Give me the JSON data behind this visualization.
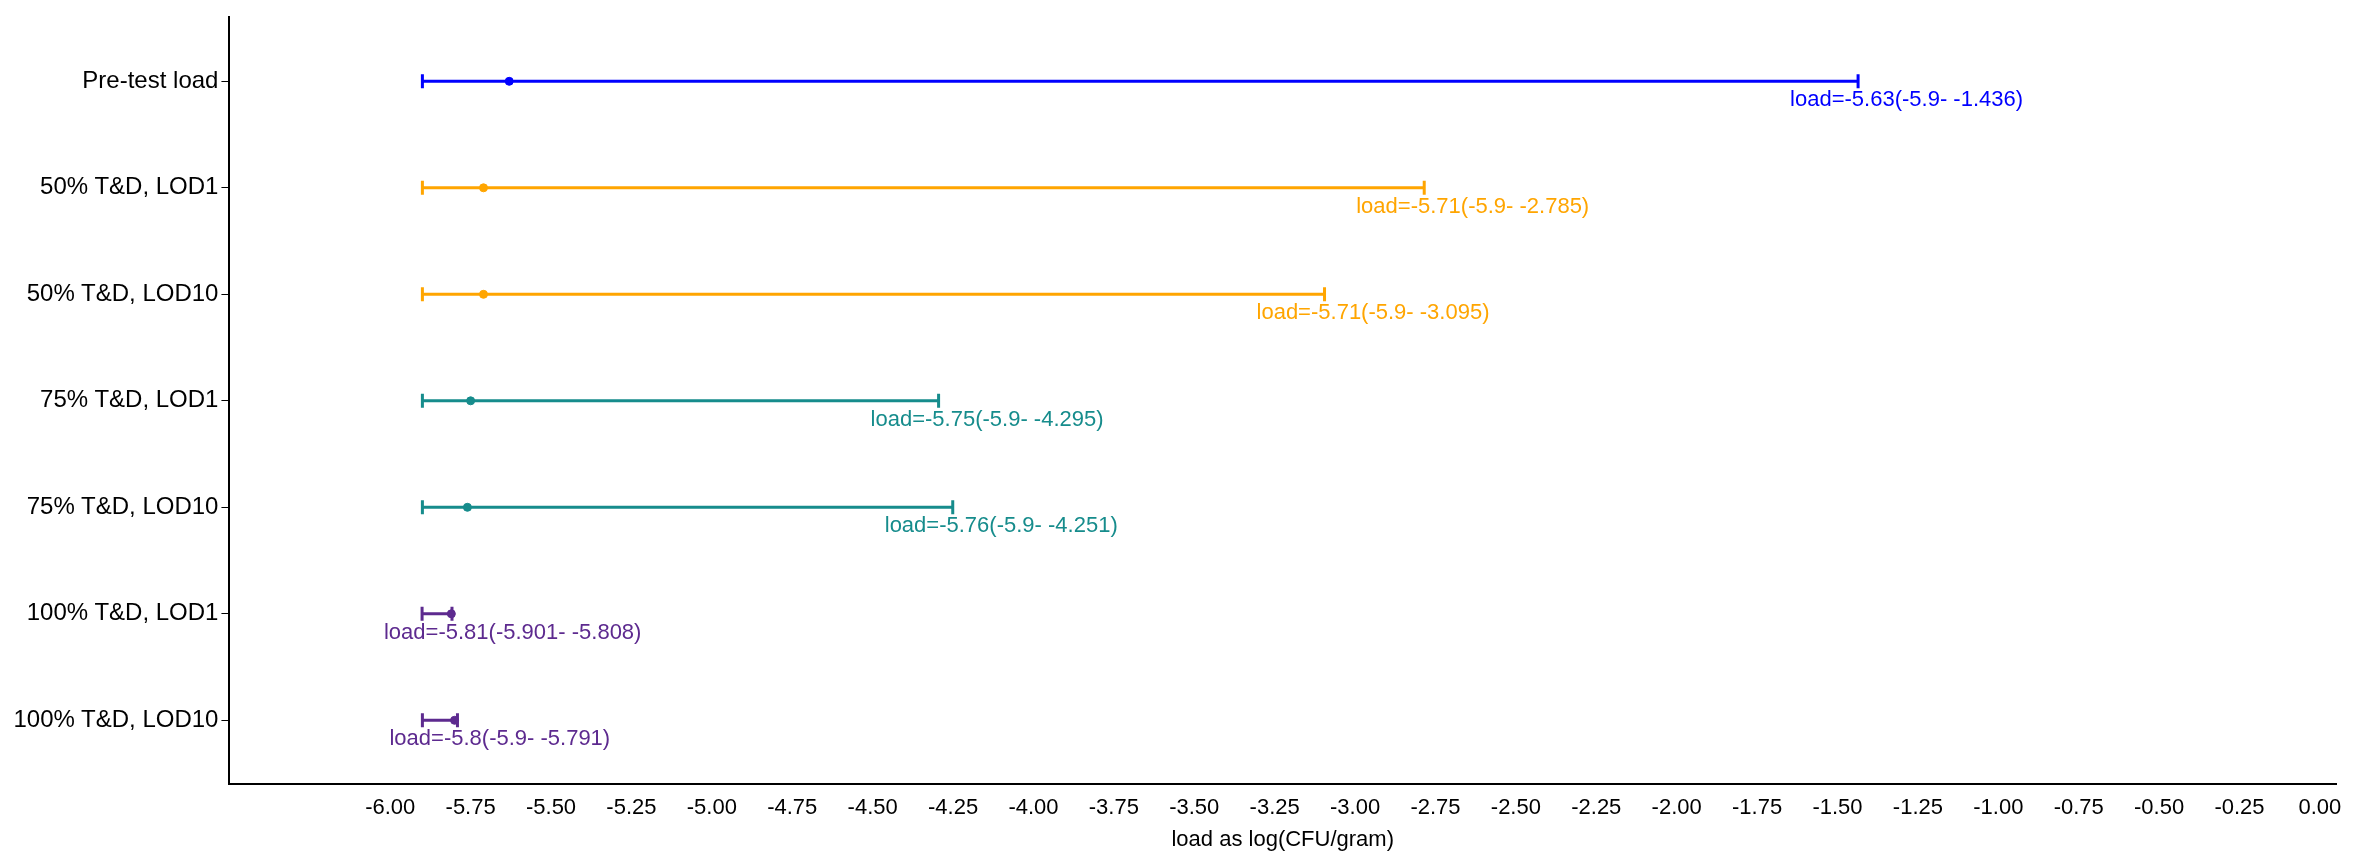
{
  "chart_data": {
    "type": "scatter",
    "orientation": "horizontal",
    "xlabel": "load as log(CFU/gram)",
    "categories": [
      "Pre-test load",
      "50% T&D, LOD1",
      "50% T&D, LOD10",
      "75% T&D, LOD1",
      "75% T&D, LOD10",
      "100% T&D, LOD1",
      "100% T&D, LOD10"
    ],
    "values": [
      -5.63,
      -5.71,
      -5.71,
      -5.75,
      -5.76,
      -5.81,
      -5.8
    ],
    "errors": [
      [
        -5.9,
        -1.436
      ],
      [
        -5.9,
        -2.785
      ],
      [
        -5.9,
        -3.095
      ],
      [
        -5.9,
        -4.295
      ],
      [
        -5.9,
        -4.251
      ],
      [
        -5.901,
        -5.808
      ],
      [
        -5.9,
        -5.791
      ]
    ],
    "annotations": [
      "load=-5.63(-5.9- -1.436)",
      "load=-5.71(-5.9- -2.785)",
      "load=-5.71(-5.9- -3.095)",
      "load=-5.75(-5.9- -4.295)",
      "load=-5.76(-5.9- -4.251)",
      "load=-5.81(-5.901- -5.808)",
      "load=-5.8(-5.9- -5.791)"
    ],
    "colors": [
      "#0000ff",
      "#ffa500",
      "#ffa500",
      "#168c8c",
      "#168c8c",
      "#5d2a8f",
      "#5d2a8f"
    ],
    "xlim": [
      -6.5,
      0.05
    ],
    "xticks": [
      {
        "value": -6,
        "label": "-6.00"
      },
      {
        "value": -5.75,
        "label": "-5.75"
      },
      {
        "value": -5.5,
        "label": "-5.50"
      },
      {
        "value": -5.25,
        "label": "-5.25"
      },
      {
        "value": -5,
        "label": "-5.00"
      },
      {
        "value": -4.75,
        "label": "-4.75"
      },
      {
        "value": -4.5,
        "label": "-4.50"
      },
      {
        "value": -4.25,
        "label": "-4.25"
      },
      {
        "value": -4,
        "label": "-4.00"
      },
      {
        "value": -3.75,
        "label": "-3.75"
      },
      {
        "value": -3.5,
        "label": "-3.50"
      },
      {
        "value": -3.25,
        "label": "-3.25"
      },
      {
        "value": -3,
        "label": "-3.00"
      },
      {
        "value": -2.75,
        "label": "-2.75"
      },
      {
        "value": -2.5,
        "label": "-2.50"
      },
      {
        "value": -2.25,
        "label": "-2.25"
      },
      {
        "value": -2,
        "label": "-2.00"
      },
      {
        "value": -1.75,
        "label": "-1.75"
      },
      {
        "value": -1.5,
        "label": "-1.50"
      },
      {
        "value": -1.25,
        "label": "-1.25"
      },
      {
        "value": -1,
        "label": "-1.00"
      },
      {
        "value": -0.75,
        "label": "-0.75"
      },
      {
        "value": -0.5,
        "label": "-0.50"
      },
      {
        "value": -0.25,
        "label": "-0.25"
      },
      {
        "value": 0,
        "label": "0.00"
      }
    ],
    "marker": "circle",
    "grid": false,
    "legend": false
  }
}
